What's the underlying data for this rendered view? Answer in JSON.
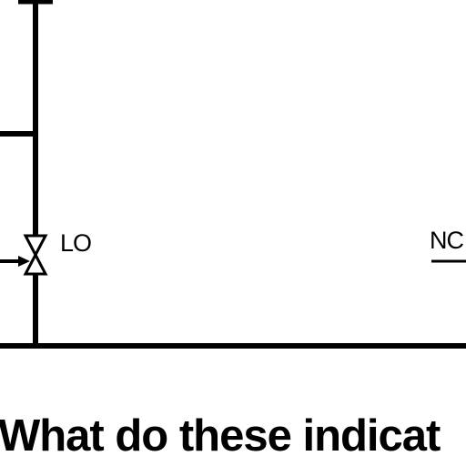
{
  "diagram": {
    "valve_label": "LO",
    "right_label": "NC",
    "question": "What do these indicat"
  }
}
